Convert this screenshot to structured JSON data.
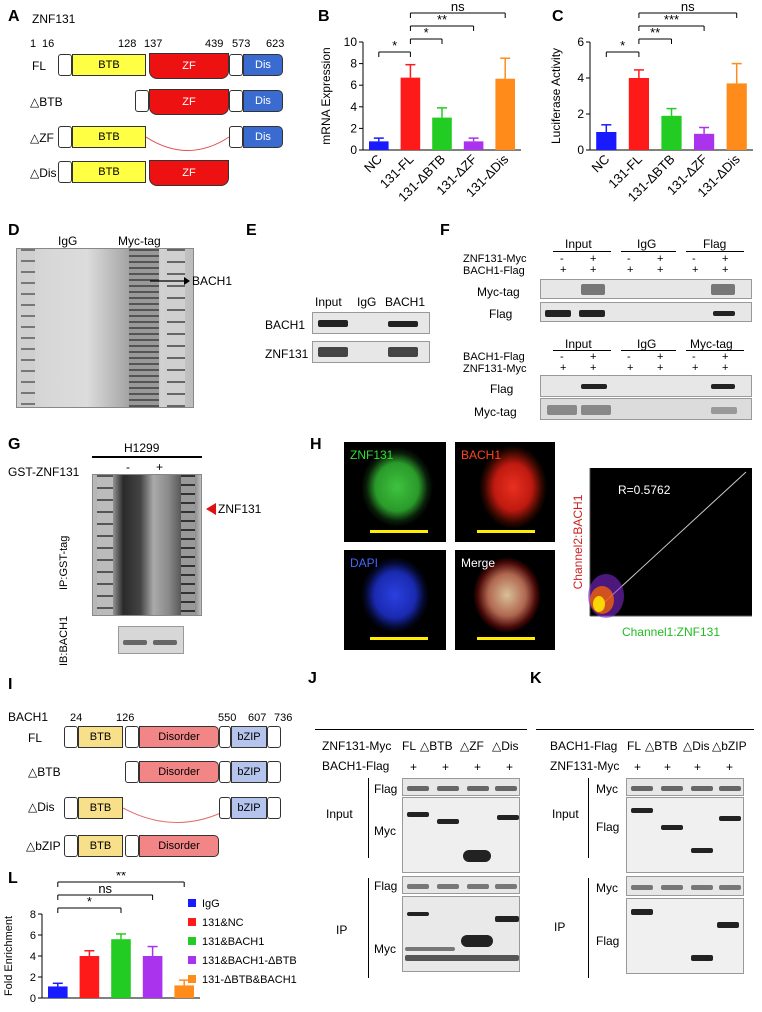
{
  "panels": {
    "A": "A",
    "B": "B",
    "C": "C",
    "D": "D",
    "E": "E",
    "F": "F",
    "G": "G",
    "H": "H",
    "I": "I",
    "J": "J",
    "K": "K",
    "L": "L"
  },
  "panelA": {
    "title": "ZNF131",
    "positions": [
      "1",
      "16",
      "128",
      "137",
      "439",
      "573",
      "623"
    ],
    "constructs": [
      "FL",
      "△BTB",
      "△ZF",
      "△Dis"
    ],
    "domains": {
      "btb": "BTB",
      "zf": "ZF",
      "dis": "Dis"
    }
  },
  "panelI": {
    "title": "BACH1",
    "positions": [
      "24",
      "126",
      "550",
      "607",
      "736"
    ],
    "constructs": [
      "FL",
      "△BTB",
      "△Dis",
      "△bZIP"
    ],
    "domains": {
      "btb": "BTB",
      "disorder": "Disorder",
      "bzip": "bZIP"
    }
  },
  "chart_data": [
    {
      "type": "bar",
      "id": "B",
      "ylabel": "mRNA Expression",
      "ylim": [
        0,
        10
      ],
      "yticks": [
        0,
        2,
        4,
        6,
        8,
        10
      ],
      "categories": [
        "NC",
        "131-FL",
        "131-ΔBTB",
        "131-ΔZF",
        "131-ΔDis"
      ],
      "values": [
        0.8,
        6.7,
        3.0,
        0.8,
        6.6
      ],
      "errors": [
        0.3,
        1.2,
        0.9,
        0.3,
        1.9
      ],
      "colors": [
        "#1a1aff",
        "#ff1a1a",
        "#22cc22",
        "#aa33ee",
        "#ff8c1a"
      ],
      "significance": [
        {
          "from": 0,
          "to": 1,
          "label": "*"
        },
        {
          "from": 1,
          "to": 2,
          "label": "*"
        },
        {
          "from": 1,
          "to": 3,
          "label": "**"
        },
        {
          "from": 1,
          "to": 4,
          "label": "ns"
        }
      ]
    },
    {
      "type": "bar",
      "id": "C",
      "ylabel": "Luciferase Activity",
      "ylim": [
        0,
        6
      ],
      "yticks": [
        0,
        2,
        4,
        6
      ],
      "categories": [
        "NC",
        "131-FL",
        "131-ΔBTB",
        "131-ΔZF",
        "131-ΔDis"
      ],
      "values": [
        1.0,
        4.0,
        1.9,
        0.9,
        3.7
      ],
      "errors": [
        0.4,
        0.45,
        0.4,
        0.35,
        1.1
      ],
      "colors": [
        "#1a1aff",
        "#ff1a1a",
        "#22cc22",
        "#aa33ee",
        "#ff8c1a"
      ],
      "significance": [
        {
          "from": 0,
          "to": 1,
          "label": "*"
        },
        {
          "from": 1,
          "to": 2,
          "label": "**"
        },
        {
          "from": 1,
          "to": 3,
          "label": "***"
        },
        {
          "from": 1,
          "to": 4,
          "label": "ns"
        }
      ]
    },
    {
      "type": "bar",
      "id": "L",
      "ylabel": "Fold Enrichment",
      "ylim": [
        0,
        8
      ],
      "yticks": [
        0,
        2,
        4,
        6,
        8
      ],
      "categories": [
        "IgG",
        "131&NC",
        "131&BACH1",
        "131&BACH1-ΔBTB",
        "131-ΔBTB&BACH1"
      ],
      "values": [
        1.1,
        4.0,
        5.6,
        4.0,
        1.2
      ],
      "errors": [
        0.3,
        0.5,
        0.5,
        0.9,
        0.5
      ],
      "colors": [
        "#1a1aff",
        "#ff1a1a",
        "#22cc22",
        "#aa33ee",
        "#ff8c1a"
      ],
      "legend": [
        "IgG",
        "131&NC",
        "131&BACH1",
        "131&BACH1-ΔBTB",
        "131-ΔBTB&BACH1"
      ],
      "significance": [
        {
          "from": 0,
          "to": 2,
          "label": "*"
        },
        {
          "from": 0,
          "to": 3,
          "label": "ns"
        },
        {
          "from": 0,
          "to": 4,
          "label": "**"
        }
      ]
    },
    {
      "type": "scatter",
      "id": "H",
      "xlabel": "Channel1:ZNF131",
      "ylabel": "Channel2:BACH1",
      "annotation": "R=0.5762"
    }
  ],
  "panelD": {
    "lanes": [
      "IgG",
      "Myc-tag"
    ],
    "arrow_label": "BACH1"
  },
  "panelE": {
    "cols": [
      "Input",
      "IgG",
      "BACH1"
    ],
    "rows": [
      "BACH1",
      "ZNF131"
    ]
  },
  "panelF": {
    "top": {
      "groups": [
        "Input",
        "IgG",
        "Flag"
      ],
      "cond1": "ZNF131-Myc",
      "cond2": "BACH1-Flag",
      "signs1": [
        "-",
        "+",
        "-",
        "+",
        "-",
        "+"
      ],
      "signs2": [
        "+",
        "+",
        "+",
        "+",
        "+",
        "+"
      ],
      "rows": [
        "Myc-tag",
        "Flag"
      ]
    },
    "bottom": {
      "groups": [
        "Input",
        "IgG",
        "Myc-tag"
      ],
      "cond1": "BACH1-Flag",
      "cond2": "ZNF131-Myc",
      "signs1": [
        "-",
        "+",
        "-",
        "+",
        "-",
        "+"
      ],
      "signs2": [
        "+",
        "+",
        "+",
        "+",
        "+",
        "+"
      ],
      "rows": [
        "Flag",
        "Myc-tag"
      ]
    }
  },
  "panelG": {
    "cell": "H1299",
    "cond": "GST-ZNF131",
    "signs": [
      "-",
      "+"
    ],
    "target": "ZNF131",
    "ip_label": "IP:GST-tag",
    "ib_label": "IB:BACH1"
  },
  "panelH": {
    "tiles": [
      "ZNF131",
      "BACH1",
      "DAPI",
      "Merge"
    ]
  },
  "panelJ": {
    "cond1": "ZNF131-Myc",
    "cond2": "BACH1-Flag",
    "lanes": [
      "FL",
      "△BTB",
      "△ZF",
      "△Dis"
    ],
    "signs": [
      "+",
      "+",
      "+",
      "+"
    ],
    "rows": [
      "Flag",
      "Myc"
    ],
    "groups": [
      "Input",
      "IP"
    ]
  },
  "panelK": {
    "cond1": "BACH1-Flag",
    "cond2": "ZNF131-Myc",
    "lanes": [
      "FL",
      "△BTB",
      "△Dis",
      "△bZIP"
    ],
    "signs": [
      "+",
      "+",
      "+",
      "+"
    ],
    "rows": [
      "Myc",
      "Flag"
    ],
    "groups": [
      "Input",
      "IP"
    ]
  }
}
